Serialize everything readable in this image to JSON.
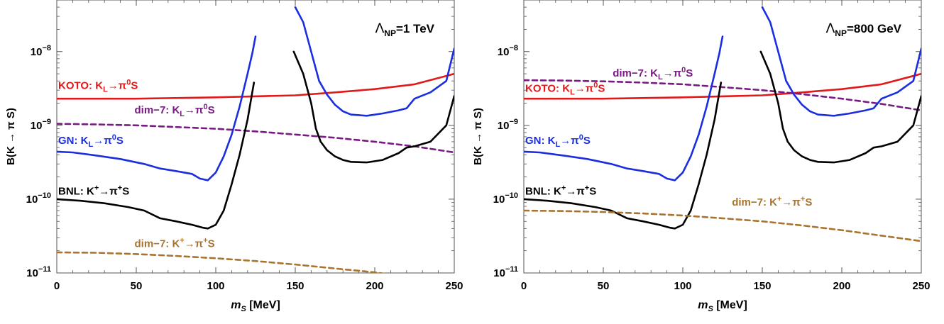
{
  "colors": {
    "koto": "#e0191b",
    "gn": "#1a2ee0",
    "bnl": "#000000",
    "dim7_neutral": "#7a1a85",
    "dim7_charged": "#a8742e",
    "frame": "#555555",
    "label": "#000000"
  },
  "chart_data": [
    {
      "type": "line",
      "panel": "left",
      "annotation": {
        "main": "Λ",
        "sub": "NP",
        "value": "=1 TeV"
      },
      "xlabel": {
        "main": "m",
        "sub": "S",
        "unit": " [MeV]"
      },
      "ylabel": "B(K → π S)",
      "xlim": [
        0,
        250
      ],
      "ylim": [
        1e-11,
        5e-08
      ],
      "yscale": "log",
      "xticks": [
        "0",
        "50",
        "100",
        "150",
        "200",
        "250"
      ],
      "yticks": [
        {
          "value": 1e-08,
          "base": "10",
          "exp": "−8"
        },
        {
          "value": 1e-09,
          "base": "10",
          "exp": "−9"
        },
        {
          "value": 1e-10,
          "base": "10",
          "exp": "−10"
        },
        {
          "value": 1e-11,
          "base": "10",
          "exp": "−11"
        }
      ],
      "series": [
        {
          "name": "KOTO",
          "style": "solid",
          "color_key": "koto",
          "label": {
            "prefix": "KOTO: K",
            "sub": "L",
            "arrow": "→π",
            "sup": "0",
            "suffix": "S"
          },
          "x": [
            0,
            50,
            100,
            150,
            175,
            200,
            225,
            250
          ],
          "y": [
            2.3e-09,
            2.3e-09,
            2.4e-09,
            2.55e-09,
            2.8e-09,
            3.1e-09,
            3.6e-09,
            5e-09
          ]
        },
        {
          "name": "dim-7 neutral",
          "style": "dashed",
          "color_key": "dim7_neutral",
          "label": {
            "prefix": "dim−7: K",
            "sub": "L",
            "arrow": "→π",
            "sup": "0",
            "suffix": "S"
          },
          "x": [
            0,
            25,
            50,
            75,
            100,
            125,
            150,
            175,
            200,
            225,
            250
          ],
          "y": [
            1.05e-09,
            1.03e-09,
            1e-09,
            9.5e-10,
            9e-10,
            8.3e-10,
            7.5e-10,
            6.8e-10,
            6e-10,
            5.2e-10,
            4.3e-10
          ]
        },
        {
          "name": "GN",
          "style": "solid",
          "color_key": "gn",
          "label": {
            "prefix": "GN: K",
            "sub": "L",
            "arrow": "→π",
            "sup": "0",
            "suffix": "S"
          },
          "x": [
            0,
            10,
            25,
            40,
            55,
            65,
            75,
            85,
            90,
            95,
            100,
            105,
            110,
            115,
            120,
            123,
            125
          ],
          "y": [
            4.4e-10,
            4.3e-10,
            3.9e-10,
            3.5e-10,
            3e-10,
            2.6e-10,
            2.4e-10,
            2.2e-10,
            1.9e-10,
            1.8e-10,
            2.3e-10,
            3.8e-10,
            7.5e-10,
            1.8e-09,
            5e-09,
            9.5e-09,
            1.6e-08
          ]
        },
        {
          "name": "GN high",
          "style": "solid",
          "color_key": "gn",
          "x": [
            150,
            155,
            160,
            165,
            170,
            175,
            180,
            185,
            195,
            205,
            215,
            220,
            225,
            235,
            245,
            250
          ],
          "y": [
            4e-08,
            2.5e-08,
            1e-08,
            4e-09,
            2.6e-09,
            1.9e-09,
            1.55e-09,
            1.4e-09,
            1.35e-09,
            1.45e-09,
            1.6e-09,
            1.7e-09,
            2.3e-09,
            2.8e-09,
            4e-09,
            1.1e-08
          ]
        },
        {
          "name": "BNL",
          "style": "solid",
          "color_key": "bnl",
          "label": {
            "prefix": "BNL: K",
            "sup1": "+",
            "arrow": "→π",
            "sup": "+",
            "suffix": "S"
          },
          "x": [
            0,
            15,
            30,
            45,
            55,
            65,
            75,
            85,
            92,
            95,
            100,
            105,
            110,
            115,
            120,
            124
          ],
          "y": [
            1e-10,
            9.5e-11,
            8.8e-11,
            7.8e-11,
            7e-11,
            5.5e-11,
            5e-11,
            4.5e-11,
            4.1e-11,
            4e-11,
            4.5e-11,
            7e-11,
            1.6e-10,
            4e-10,
            1.2e-09,
            3.8e-09
          ]
        },
        {
          "name": "BNL high",
          "style": "solid",
          "color_key": "bnl",
          "x": [
            149,
            155,
            160,
            163,
            166,
            170,
            175,
            180,
            185,
            195,
            205,
            215,
            220,
            225,
            235,
            245,
            250
          ],
          "y": [
            1e-08,
            5e-09,
            2e-09,
            9e-10,
            6e-10,
            4.6e-10,
            3.8e-10,
            3.4e-10,
            3.2e-10,
            3.15e-10,
            3.4e-10,
            4.2e-10,
            5e-10,
            5.2e-10,
            6e-10,
            1e-09,
            2.5e-09
          ]
        },
        {
          "name": "dim-7 charged",
          "style": "dashed",
          "color_key": "dim7_charged",
          "label": {
            "prefix": "dim−7: K",
            "sup1": "+",
            "arrow": "→π",
            "sup": "+",
            "suffix": "S"
          },
          "x": [
            0,
            25,
            50,
            75,
            100,
            125,
            150,
            175,
            200,
            210
          ],
          "y": [
            1.9e-11,
            1.88e-11,
            1.8e-11,
            1.7e-11,
            1.58e-11,
            1.45e-11,
            1.3e-11,
            1.15e-11,
            1.02e-11,
            9.5e-12
          ]
        }
      ]
    },
    {
      "type": "line",
      "panel": "right",
      "annotation": {
        "main": "Λ",
        "sub": "NP",
        "value": "=800 GeV"
      },
      "xlabel": {
        "main": "m",
        "sub": "S",
        "unit": " [MeV]"
      },
      "ylabel": "B(K → π S)",
      "xlim": [
        0,
        250
      ],
      "ylim": [
        1e-11,
        5e-08
      ],
      "yscale": "log",
      "xticks": [
        "0",
        "50",
        "100",
        "150",
        "200",
        "250"
      ],
      "yticks": [
        {
          "value": 1e-08,
          "base": "10",
          "exp": "−8"
        },
        {
          "value": 1e-09,
          "base": "10",
          "exp": "−9"
        },
        {
          "value": 1e-10,
          "base": "10",
          "exp": "−10"
        },
        {
          "value": 1e-11,
          "base": "10",
          "exp": "−11"
        }
      ],
      "series": [
        {
          "name": "KOTO",
          "style": "solid",
          "color_key": "koto",
          "label": {
            "prefix": "KOTO: K",
            "sub": "L",
            "arrow": "→π",
            "sup": "0",
            "suffix": "S"
          },
          "x": [
            0,
            50,
            100,
            150,
            175,
            200,
            225,
            250
          ],
          "y": [
            2.3e-09,
            2.3e-09,
            2.4e-09,
            2.55e-09,
            2.8e-09,
            3.1e-09,
            3.6e-09,
            5e-09
          ]
        },
        {
          "name": "dim-7 neutral",
          "style": "dashed",
          "color_key": "dim7_neutral",
          "label": {
            "prefix": "dim−7: K",
            "sub": "L",
            "arrow": "→π",
            "sup": "0",
            "suffix": "S"
          },
          "x": [
            0,
            25,
            50,
            75,
            100,
            125,
            150,
            175,
            200,
            225,
            250
          ],
          "y": [
            4.1e-09,
            4.05e-09,
            3.95e-09,
            3.8e-09,
            3.6e-09,
            3.3e-09,
            3e-09,
            2.65e-09,
            2.3e-09,
            1.95e-09,
            1.6e-09
          ]
        },
        {
          "name": "GN",
          "style": "solid",
          "color_key": "gn",
          "label": {
            "prefix": "GN: K",
            "sub": "L",
            "arrow": "→π",
            "sup": "0",
            "suffix": "S"
          },
          "x": [
            0,
            10,
            25,
            40,
            55,
            65,
            75,
            85,
            90,
            95,
            100,
            105,
            110,
            115,
            120,
            123,
            125
          ],
          "y": [
            4.4e-10,
            4.3e-10,
            3.9e-10,
            3.5e-10,
            3e-10,
            2.6e-10,
            2.4e-10,
            2.2e-10,
            1.9e-10,
            1.8e-10,
            2.3e-10,
            3.8e-10,
            7.5e-10,
            1.8e-09,
            5e-09,
            9.5e-09,
            1.6e-08
          ]
        },
        {
          "name": "GN high",
          "style": "solid",
          "color_key": "gn",
          "x": [
            150,
            155,
            160,
            165,
            170,
            175,
            180,
            185,
            195,
            205,
            215,
            220,
            225,
            235,
            245,
            250
          ],
          "y": [
            4e-08,
            2.5e-08,
            1e-08,
            4e-09,
            2.6e-09,
            1.9e-09,
            1.55e-09,
            1.4e-09,
            1.35e-09,
            1.45e-09,
            1.6e-09,
            1.7e-09,
            2.3e-09,
            2.8e-09,
            4e-09,
            1.1e-08
          ]
        },
        {
          "name": "BNL",
          "style": "solid",
          "color_key": "bnl",
          "label": {
            "prefix": "BNL: K",
            "sup1": "+",
            "arrow": "→π",
            "sup": "+",
            "suffix": "S"
          },
          "x": [
            0,
            15,
            30,
            45,
            55,
            65,
            75,
            85,
            92,
            95,
            100,
            105,
            110,
            115,
            120,
            124
          ],
          "y": [
            1e-10,
            9.5e-11,
            8.8e-11,
            7.8e-11,
            7e-11,
            5.5e-11,
            5e-11,
            4.5e-11,
            4.1e-11,
            4e-11,
            4.5e-11,
            7e-11,
            1.6e-10,
            4e-10,
            1.2e-09,
            3.8e-09
          ]
        },
        {
          "name": "BNL high",
          "style": "solid",
          "color_key": "bnl",
          "x": [
            149,
            155,
            160,
            163,
            166,
            170,
            175,
            180,
            185,
            195,
            205,
            215,
            220,
            225,
            235,
            245,
            250
          ],
          "y": [
            1e-08,
            5e-09,
            2e-09,
            9e-10,
            6e-10,
            4.6e-10,
            3.8e-10,
            3.4e-10,
            3.2e-10,
            3.15e-10,
            3.4e-10,
            4.2e-10,
            5e-10,
            5.2e-10,
            6e-10,
            1e-09,
            2.5e-09
          ]
        },
        {
          "name": "dim-7 charged",
          "style": "dashed",
          "color_key": "dim7_charged",
          "label": {
            "prefix": "dim−7: K",
            "sup1": "+",
            "arrow": "→π",
            "sup": "+",
            "suffix": "S"
          },
          "x": [
            0,
            25,
            50,
            75,
            100,
            125,
            150,
            175,
            200,
            225,
            250
          ],
          "y": [
            7e-11,
            6.9e-11,
            6.7e-11,
            6.4e-11,
            6e-11,
            5.5e-11,
            5e-11,
            4.4e-11,
            3.8e-11,
            3.2e-11,
            2.7e-11
          ]
        }
      ]
    }
  ]
}
